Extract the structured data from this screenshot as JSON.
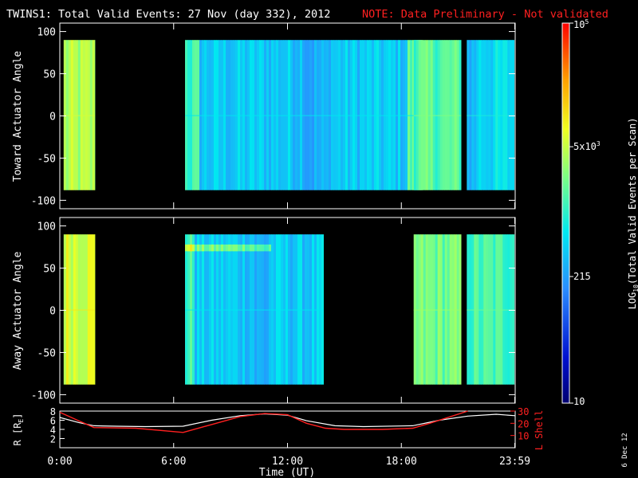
{
  "header": {
    "title": "TWINS1: Total Valid Events: 27 Nov (day 332), 2012",
    "note": "NOTE: Data Preliminary - Not validated"
  },
  "footer": {
    "stamp": "6 Dec 12"
  },
  "colors": {
    "background": "#000000",
    "axes": "#ffffff",
    "note": "#ff2020",
    "lshell": "#ff2020",
    "r_line": "#ffffff"
  },
  "chart_data": [
    {
      "type": "heatmap",
      "panel": "toward",
      "ylabel": "Toward Actuator Angle",
      "ylim": [
        -110,
        110
      ],
      "yticks": [
        100,
        50,
        0,
        -50,
        -100
      ],
      "xlim": [
        0,
        24
      ],
      "angle_range": [
        -88,
        90
      ],
      "segments": [
        {
          "start": 0.2,
          "end": 1.85,
          "level": 0.64
        },
        {
          "start": 6.6,
          "end": 19.1,
          "level": 0.4
        },
        {
          "start": 18.65,
          "end": 21.15,
          "level": 0.55
        },
        {
          "start": 21.45,
          "end": 23.95,
          "level": 0.43
        }
      ]
    },
    {
      "type": "heatmap",
      "panel": "away",
      "ylabel": "Away Actuator Angle",
      "ylim": [
        -110,
        110
      ],
      "yticks": [
        100,
        50,
        0,
        -50,
        -100
      ],
      "xlim": [
        0,
        24
      ],
      "angle_range": [
        -88,
        90
      ],
      "segments": [
        {
          "start": 0.2,
          "end": 1.85,
          "level": 0.7
        },
        {
          "start": 6.6,
          "end": 13.9,
          "level": 0.4
        },
        {
          "start": 18.65,
          "end": 21.15,
          "level": 0.58
        },
        {
          "start": 21.45,
          "end": 23.95,
          "level": 0.53
        }
      ]
    },
    {
      "type": "line",
      "panel": "orbit",
      "ylabel_left": "R [R",
      "ylabel_left_sub": "E",
      "ylabel_left_end": "]",
      "ylabel_right": "L Shell",
      "xlabel": "Time (UT)",
      "xlim": [
        0,
        24
      ],
      "xticks": [
        {
          "value": 0,
          "label": "0:00"
        },
        {
          "value": 6,
          "label": "6:00"
        },
        {
          "value": 12,
          "label": "12:00"
        },
        {
          "value": 18,
          "label": "18:00"
        },
        {
          "value": 23.98,
          "label": "23:59"
        }
      ],
      "ylim_left": [
        0,
        8
      ],
      "yticks_left": [
        2,
        4,
        6,
        8
      ],
      "ylim_right": [
        0,
        30
      ],
      "yticks_right": [
        10,
        20,
        30
      ],
      "series": [
        {
          "axis": "left",
          "x": [
            0,
            1,
            1.8,
            3,
            4.5,
            6.5,
            8,
            9.5,
            10.8,
            12,
            13,
            14.5,
            16,
            18.6,
            20,
            21.5,
            23,
            24
          ],
          "y": [
            6.6,
            5.5,
            4.8,
            4.7,
            4.6,
            4.7,
            6.0,
            7.0,
            7.4,
            7.1,
            5.9,
            4.8,
            4.6,
            4.8,
            6.0,
            6.9,
            7.3,
            7.0
          ]
        },
        {
          "axis": "right",
          "x": [
            0,
            1,
            1.8,
            4,
            6.5,
            8,
            9.5,
            10.8,
            12,
            13,
            14,
            15,
            17,
            18.6,
            19.5,
            20.5,
            21.5
          ],
          "y": [
            29.0,
            22.0,
            16.5,
            16.0,
            12.5,
            19.0,
            25.5,
            28.0,
            27.0,
            20.0,
            16.0,
            15.0,
            15.0,
            16.0,
            20.0,
            25.0,
            32.0
          ]
        }
      ]
    },
    {
      "type": "colorbar",
      "label_main": "LOG",
      "label_sub": "10",
      "label_rest": "(Total Valid Events per Scan)",
      "range": [
        10,
        100000
      ],
      "ticks": [
        {
          "value": 10,
          "label": "10"
        },
        {
          "value": 215,
          "label": "215"
        },
        {
          "value": 5000,
          "label": "5x10",
          "exp": "3"
        },
        {
          "value": 100000,
          "label": "10",
          "exp": "5"
        }
      ]
    }
  ]
}
